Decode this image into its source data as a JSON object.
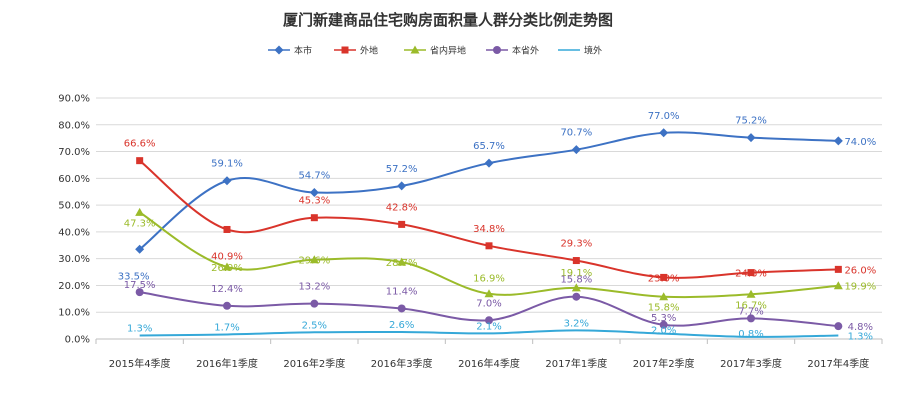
{
  "chart_data": {
    "type": "line",
    "title": "厦门新建商品住宅购房面积量人群分类比例走势图",
    "categories": [
      "2015年4季度",
      "2016年1季度",
      "2016年2季度",
      "2016年3季度",
      "2016年4季度",
      "2017年1季度",
      "2017年2季度",
      "2017年3季度",
      "2017年4季度"
    ],
    "ylim": [
      0,
      90
    ],
    "yticks": [
      0,
      10,
      20,
      30,
      40,
      50,
      60,
      70,
      80,
      90
    ],
    "ytick_labels": [
      "0.0%",
      "10.0%",
      "20.0%",
      "30.0%",
      "40.0%",
      "50.0%",
      "60.0%",
      "70.0%",
      "80.0%",
      "90.0%"
    ],
    "grid": true,
    "legend_position": "top",
    "series": [
      {
        "name": "本市",
        "color": "#3d72c4",
        "marker": "diamond",
        "values": [
          33.5,
          59.1,
          54.7,
          57.2,
          65.7,
          70.7,
          77.0,
          75.2,
          74.0
        ],
        "labels": [
          "33.5%",
          "59.1%",
          "54.7%",
          "57.2%",
          "65.7%",
          "70.7%",
          "77.0%",
          "75.2%",
          "74.0%"
        ]
      },
      {
        "name": "外地",
        "color": "#d9342b",
        "marker": "square",
        "values": [
          66.6,
          40.9,
          45.3,
          42.8,
          34.8,
          29.3,
          23.0,
          24.8,
          26.0
        ],
        "labels": [
          "66.6%",
          "40.9%",
          "45.3%",
          "42.8%",
          "34.8%",
          "29.3%",
          "23.0%",
          "24.8%",
          "26.0%"
        ]
      },
      {
        "name": "省内异地",
        "color": "#9bbb2a",
        "marker": "triangle",
        "values": [
          47.3,
          26.9,
          29.6,
          28.7,
          16.9,
          19.1,
          15.8,
          16.7,
          19.9
        ],
        "labels": [
          "47.3%",
          "26.9%",
          "29.6%",
          "28.7%",
          "16.9%",
          "19.1%",
          "15.8%",
          "16.7%",
          "19.9%"
        ]
      },
      {
        "name": "本省外",
        "color": "#7b5aa6",
        "marker": "circle",
        "values": [
          17.5,
          12.4,
          13.2,
          11.4,
          7.0,
          15.8,
          5.3,
          7.7,
          4.8
        ],
        "labels": [
          "17.5%",
          "12.4%",
          "13.2%",
          "11.4%",
          "7.0%",
          "15.8%",
          "5.3%",
          "7.7%",
          "4.8%"
        ]
      },
      {
        "name": "境外",
        "color": "#35a8d8",
        "marker": "none",
        "values": [
          1.3,
          1.7,
          2.5,
          2.6,
          2.1,
          3.2,
          2.0,
          0.8,
          1.3
        ],
        "labels": [
          "1.3%",
          "1.7%",
          "2.5%",
          "2.6%",
          "2.1%",
          "3.2%",
          "2.0%",
          "0.8%",
          "1.3%"
        ]
      }
    ]
  }
}
